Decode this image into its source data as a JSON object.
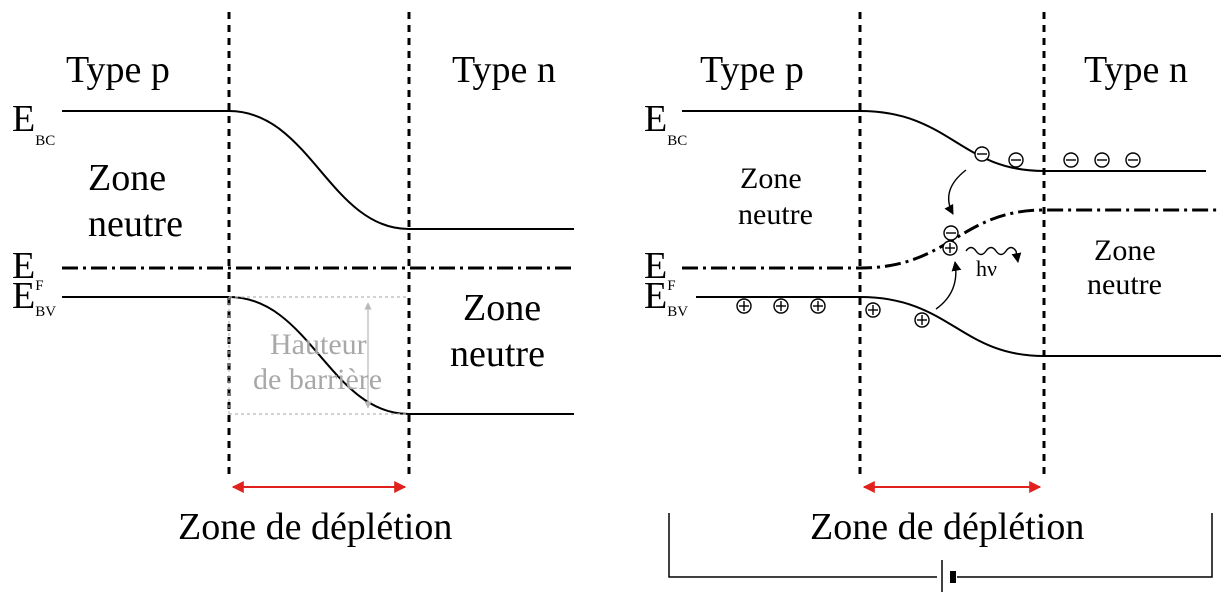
{
  "left_panel": {
    "type_p": "Type p",
    "type_n": "Type n",
    "ebc_main": "E",
    "ebc_sub": "BC",
    "ef_main": "E",
    "ef_sub": "F",
    "ebv_main": "E",
    "ebv_sub": "BV",
    "zone_neutre_p_line1": "Zone",
    "zone_neutre_p_line2": "neutre",
    "zone_neutre_n_line1": "Zone",
    "zone_neutre_n_line2": "neutre",
    "barrier_line1": "Hauteur",
    "barrier_line2": "de barrière",
    "depletion_label": "Zone de déplétion"
  },
  "right_panel": {
    "type_p": "Type p",
    "type_n": "Type n",
    "ebc_main": "E",
    "ebc_sub": "BC",
    "ef_main": "E",
    "ef_sub": "F",
    "ebv_main": "E",
    "ebv_sub": "BV",
    "zone_neutre_p_line1": "Zone",
    "zone_neutre_p_line2": "neutre",
    "zone_neutre_n_line1": "Zone",
    "zone_neutre_n_line2": "neutre",
    "photon_label": "hν",
    "depletion_label": "Zone de déplétion"
  },
  "colors": {
    "depletion_arrow": "#e0211d",
    "barrier_text": "#a8a8a8"
  }
}
